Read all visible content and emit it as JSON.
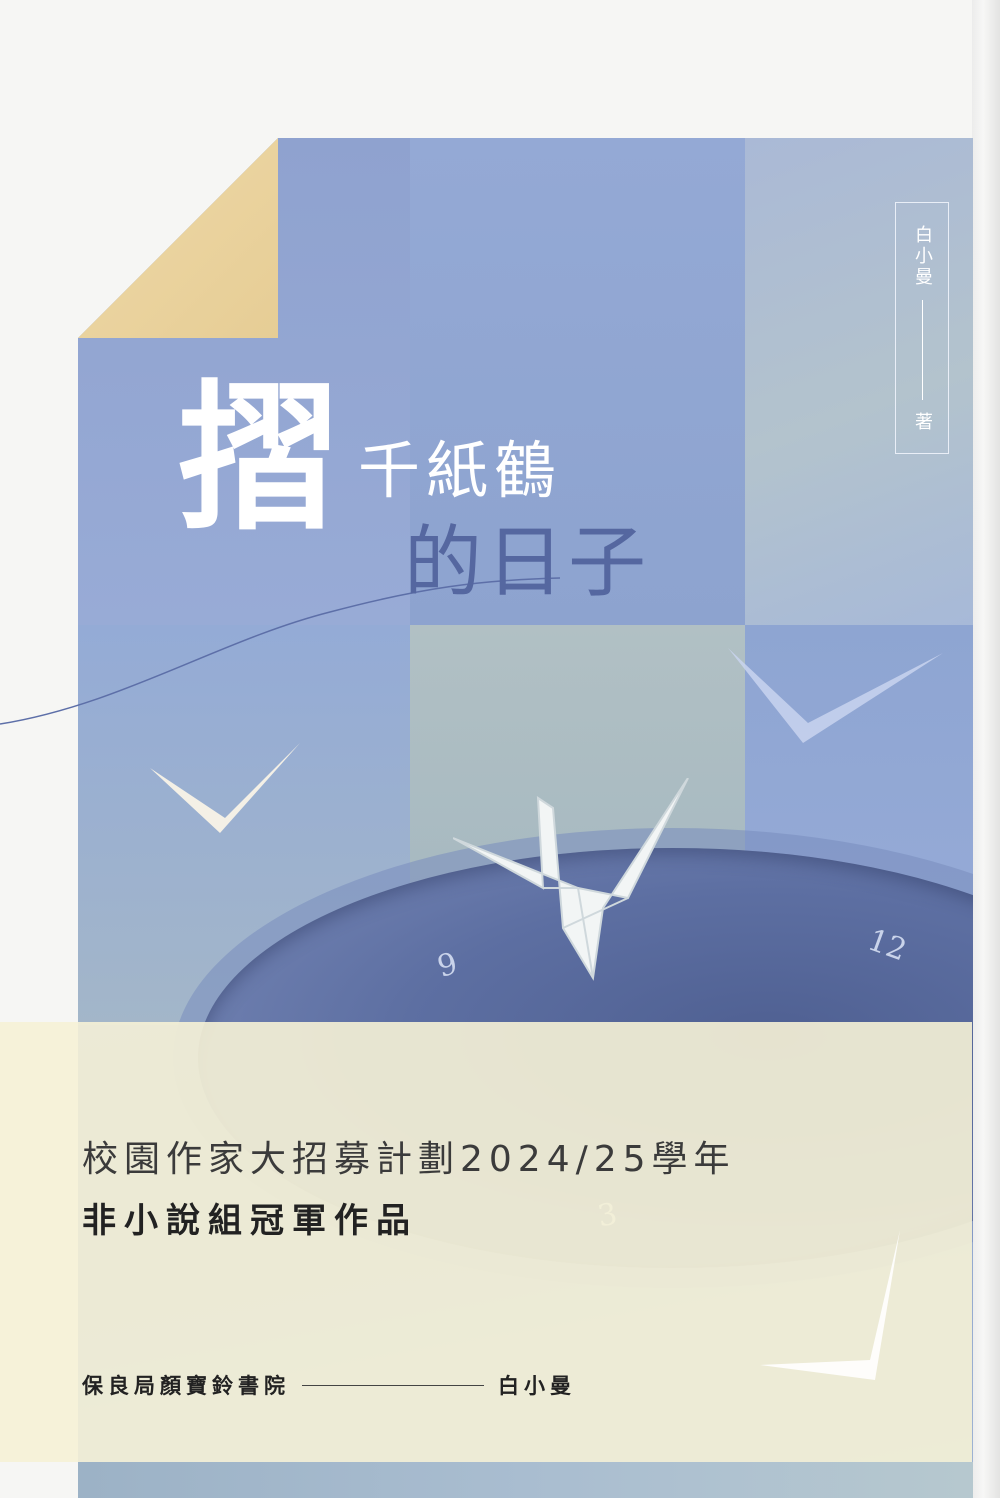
{
  "cover": {
    "title_char_1": "摺",
    "title_line_1": "千紙鶴",
    "title_line_2": "的日子",
    "author_vertical": "白小曼",
    "author_suffix": "著",
    "clock_numbers": [
      "9",
      "12",
      "3"
    ]
  },
  "banner": {
    "program": "校園作家大招募計劃2024/25學年",
    "award": "非小說組冠軍作品",
    "school": "保良局顏寶鈴書院",
    "author": "白小曼"
  },
  "colors": {
    "background": "#f6f6f4",
    "art_blue": "#8ea3cf",
    "banner": "#f6f2d6",
    "fold": "#efd9a8"
  },
  "icons": [
    "origami-crane-icon",
    "paper-bird-icon"
  ]
}
